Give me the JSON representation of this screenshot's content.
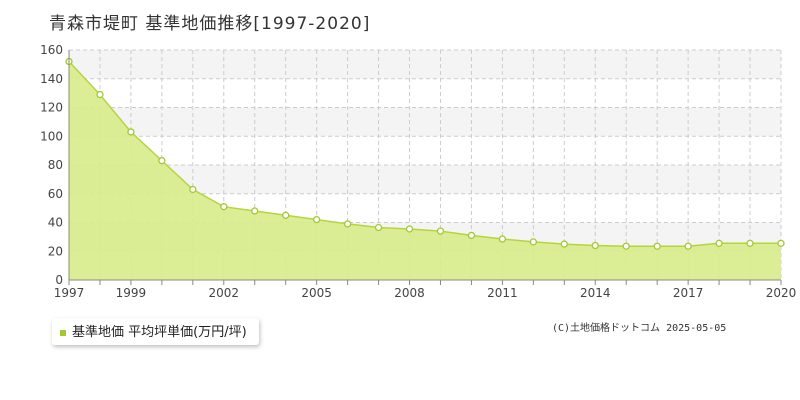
{
  "title": "青森市堤町 基準地価推移[1997-2020]",
  "legend_label": "基準地価 平均坪単価(万円/坪)",
  "copyright": "(C)土地価格ドットコム 2025-05-05",
  "colors": {
    "area_fill": "#d8ec8a",
    "line": "#b5d63a",
    "marker": "#a3c832",
    "grid": "#cccccc",
    "band": "#f4f4f4"
  },
  "chart_data": {
    "type": "area",
    "title": "青森市堤町 基準地価推移[1997-2020]",
    "xlabel": "",
    "ylabel": "",
    "xlim": [
      1997,
      2020
    ],
    "ylim": [
      0,
      160
    ],
    "y_ticks": [
      0,
      20,
      40,
      60,
      80,
      100,
      120,
      140,
      160
    ],
    "x_ticks": [
      1997,
      1999,
      2002,
      2005,
      2008,
      2011,
      2014,
      2017,
      2020
    ],
    "grid": true,
    "legend_position": "bottom-left",
    "series": [
      {
        "name": "基準地価 平均坪単価(万円/坪)",
        "x": [
          1997,
          1998,
          1999,
          2000,
          2001,
          2002,
          2003,
          2004,
          2005,
          2006,
          2007,
          2008,
          2009,
          2010,
          2011,
          2012,
          2013,
          2014,
          2015,
          2016,
          2017,
          2018,
          2019,
          2020
        ],
        "values": [
          152,
          129,
          103,
          83,
          63,
          51,
          48,
          45,
          42,
          39,
          36.5,
          35.5,
          34,
          31,
          28.5,
          26.5,
          25,
          24,
          23.5,
          23.5,
          23.5,
          25.5,
          25.5,
          25.5
        ]
      }
    ]
  }
}
